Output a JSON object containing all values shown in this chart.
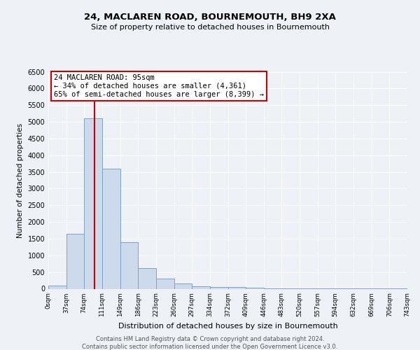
{
  "title": "24, MACLAREN ROAD, BOURNEMOUTH, BH9 2XA",
  "subtitle": "Size of property relative to detached houses in Bournemouth",
  "xlabel": "Distribution of detached houses by size in Bournemouth",
  "ylabel": "Number of detached properties",
  "bin_edges": [
    0,
    37,
    74,
    111,
    149,
    186,
    223,
    260,
    297,
    334,
    372,
    409,
    446,
    483,
    520,
    557,
    594,
    632,
    669,
    706,
    743
  ],
  "bar_heights": [
    100,
    1650,
    5100,
    3600,
    1400,
    620,
    300,
    150,
    80,
    50,
    50,
    30,
    15,
    5,
    5,
    3,
    2,
    2,
    1,
    1
  ],
  "bar_color": "#ccdaeb",
  "bar_edge_color": "#7ba3c8",
  "property_size": 95,
  "vline_color": "#cc0000",
  "annotation_title": "24 MACLAREN ROAD: 95sqm",
  "annotation_line1": "← 34% of detached houses are smaller (4,361)",
  "annotation_line2": "65% of semi-detached houses are larger (8,399) →",
  "annotation_box_color": "#ffffff",
  "annotation_box_edge": "#cc0000",
  "ylim": [
    0,
    6500
  ],
  "yticks": [
    0,
    500,
    1000,
    1500,
    2000,
    2500,
    3000,
    3500,
    4000,
    4500,
    5000,
    5500,
    6000,
    6500
  ],
  "footer_line1": "Contains HM Land Registry data © Crown copyright and database right 2024.",
  "footer_line2": "Contains public sector information licensed under the Open Government Licence v3.0.",
  "background_color": "#eef2f7",
  "grid_color": "#ffffff"
}
